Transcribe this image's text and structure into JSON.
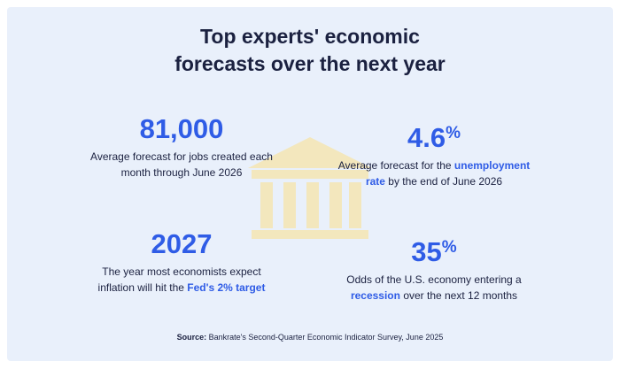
{
  "title": [
    "Top experts' economic",
    "forecasts over the next year"
  ],
  "stats": [
    {
      "number": "81,000",
      "unit": "",
      "description": [
        {
          "text": "Average forecast for jobs created each month through June 2026",
          "highlight": false
        }
      ]
    },
    {
      "number": "4.6",
      "unit": "%",
      "description": [
        {
          "text": "Average forecast for the ",
          "highlight": false
        },
        {
          "text": "unemployment rate",
          "highlight": true
        },
        {
          "text": " by the end of June 2026",
          "highlight": false
        }
      ]
    },
    {
      "number": "2027",
      "unit": "",
      "description": [
        {
          "text": "The year most economists expect inflation will hit the ",
          "highlight": false
        },
        {
          "text": "Fed's 2% target",
          "highlight": true
        }
      ]
    },
    {
      "number": "35",
      "unit": "%",
      "description": [
        {
          "text": "Odds of the U.S. economy entering a ",
          "highlight": false
        },
        {
          "text": "recession",
          "highlight": true
        },
        {
          "text": " over the next 12 months",
          "highlight": false
        }
      ]
    }
  ],
  "source": {
    "label": "Source:",
    "text": " Bankrate's Second-Quarter Economic Indicator Survey, June 2025"
  }
}
